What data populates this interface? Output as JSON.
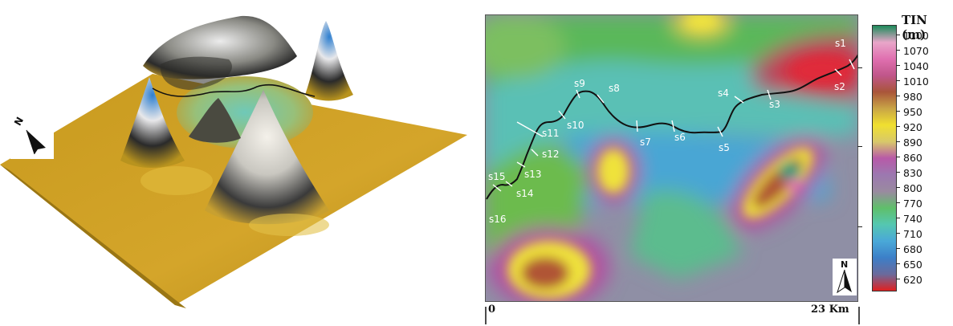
{
  "legend": {
    "title": "TIN (m)",
    "labels": [
      "1100",
      "1070",
      "1040",
      "1010",
      "980",
      "950",
      "920",
      "890",
      "860",
      "830",
      "800",
      "770",
      "740",
      "710",
      "680",
      "650",
      "620"
    ],
    "colors": [
      "#1c8a5a",
      "#e8a6c9",
      "#e070b0",
      "#c0568a",
      "#a9553a",
      "#c9a546",
      "#f0e030",
      "#d8c86a",
      "#b85aa8",
      "#9c78b0",
      "#9a8aa0",
      "#5fbf6a",
      "#55c7b0",
      "#4aa8d8",
      "#3c7fc8",
      "#6a6a9c",
      "#e02020"
    ]
  },
  "map": {
    "scale_start": "0",
    "scale_end": "23 Km",
    "north_label": "N",
    "stations": [
      "s1",
      "s2",
      "s3",
      "s4",
      "s5",
      "s6",
      "s7",
      "s8",
      "s9",
      "s10",
      "s11",
      "s12",
      "s13",
      "s14",
      "s15",
      "s16"
    ]
  },
  "terrain": {
    "north_label": "N"
  }
}
